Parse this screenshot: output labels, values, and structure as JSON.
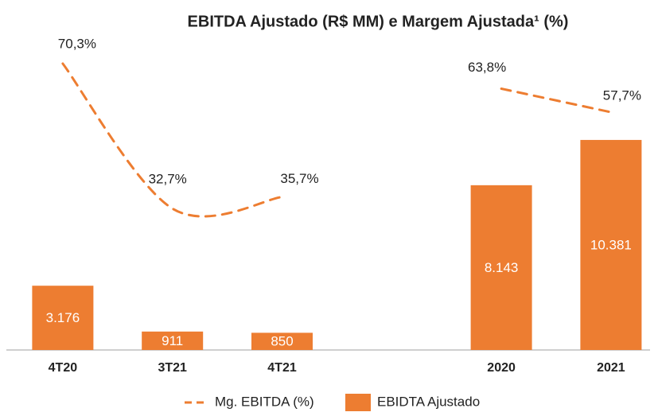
{
  "chart_data": {
    "type": "combo",
    "title": "EBITDA Ajustado (R$ MM) e Margem Ajustada¹ (%)",
    "categories": [
      "4T20",
      "3T21",
      "4T21",
      null,
      "2020",
      "2021"
    ],
    "ylim": [
      0,
      16000
    ],
    "y2lim": [
      -4,
      80
    ],
    "series": [
      {
        "name": "Mg. EBITDA (%)",
        "type": "line",
        "axis": "y2",
        "color": "#ed7d31",
        "dashed": true,
        "values": [
          70.3,
          32.7,
          35.7,
          null,
          63.8,
          57.7
        ],
        "value_labels": [
          "70,3%",
          "32,7%",
          "35,7%",
          null,
          "63,8%",
          "57,7%"
        ]
      },
      {
        "name": "EBIDTA Ajustado",
        "type": "bar",
        "color": "#ed7d31",
        "values": [
          3176,
          911,
          850,
          null,
          8143,
          10381
        ],
        "value_labels": [
          "3.176",
          "911",
          "850",
          null,
          "8.143",
          "10.381"
        ]
      }
    ]
  }
}
